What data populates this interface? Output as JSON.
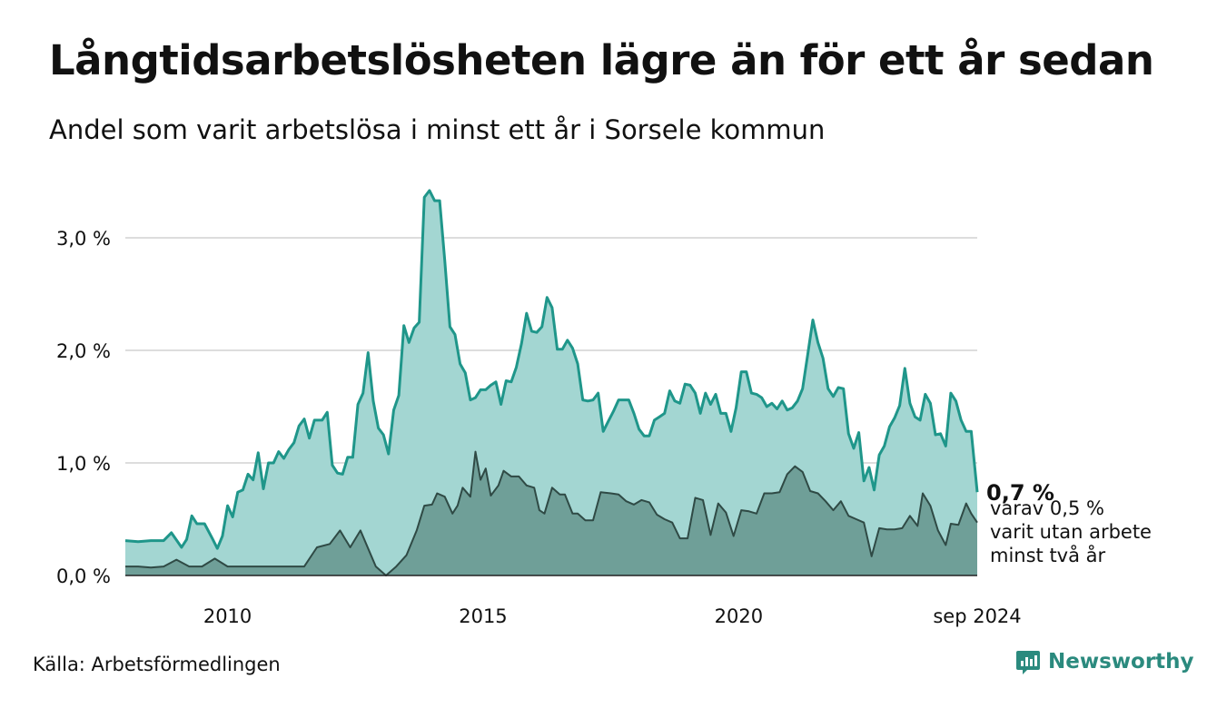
{
  "header": {
    "title": "Långtidsarbetslösheten lägre än för ett år sedan",
    "subtitle": "Andel som varit arbetslösa i minst ett år i Sorsele kommun"
  },
  "footer": {
    "source": "Källa: Arbetsförmedlingen",
    "brand": "Newsworthy"
  },
  "colors": {
    "area_main": "#a3d6d2",
    "line_main": "#1f968a",
    "area_sub": "#6f9f98",
    "line_sub": "#2f4a45",
    "grid": "#dddddd",
    "brand": "#2b8a7e"
  },
  "chart_data": {
    "type": "area",
    "title": "Långtidsarbetslösheten lägre än för ett år sedan",
    "subtitle": "Andel som varit arbetslösa i minst ett år i Sorsele kommun",
    "x_ticks": [
      {
        "x": 2010,
        "label": "2010"
      },
      {
        "x": 2015,
        "label": "2015"
      },
      {
        "x": 2020,
        "label": "2020"
      },
      {
        "x": 2024.667,
        "label": "sep 2024"
      }
    ],
    "y_ticks": [
      {
        "y": 0,
        "label": "0,0 %"
      },
      {
        "y": 1,
        "label": "1,0 %"
      },
      {
        "y": 2,
        "label": "2,0 %"
      },
      {
        "y": 3,
        "label": "3,0 %"
      }
    ],
    "xlim": [
      2008.0,
      2024.667
    ],
    "ylim": [
      0,
      3.5
    ],
    "grid": true,
    "series": [
      {
        "values": [
          [
            2008.0,
            0.31
          ],
          [
            2008.25,
            0.3
          ],
          [
            2008.5,
            0.31
          ],
          [
            2008.75,
            0.31
          ],
          [
            2008.9,
            0.38
          ],
          [
            2009.1,
            0.25
          ],
          [
            2009.2,
            0.32
          ],
          [
            2009.3,
            0.53
          ],
          [
            2009.4,
            0.46
          ],
          [
            2009.55,
            0.46
          ],
          [
            2009.7,
            0.33
          ],
          [
            2009.8,
            0.24
          ],
          [
            2009.9,
            0.35
          ],
          [
            2010.0,
            0.62
          ],
          [
            2010.1,
            0.52
          ],
          [
            2010.2,
            0.74
          ],
          [
            2010.3,
            0.76
          ],
          [
            2010.4,
            0.9
          ],
          [
            2010.5,
            0.85
          ],
          [
            2010.6,
            1.09
          ],
          [
            2010.7,
            0.77
          ],
          [
            2010.8,
            1.0
          ],
          [
            2010.9,
            1.0
          ],
          [
            2011.0,
            1.1
          ],
          [
            2011.1,
            1.04
          ],
          [
            2011.2,
            1.12
          ],
          [
            2011.3,
            1.18
          ],
          [
            2011.4,
            1.33
          ],
          [
            2011.5,
            1.39
          ],
          [
            2011.6,
            1.22
          ],
          [
            2011.7,
            1.38
          ],
          [
            2011.85,
            1.38
          ],
          [
            2011.95,
            1.45
          ],
          [
            2012.05,
            0.98
          ],
          [
            2012.15,
            0.91
          ],
          [
            2012.25,
            0.9
          ],
          [
            2012.35,
            1.05
          ],
          [
            2012.45,
            1.05
          ],
          [
            2012.55,
            1.52
          ],
          [
            2012.65,
            1.62
          ],
          [
            2012.75,
            1.98
          ],
          [
            2012.85,
            1.55
          ],
          [
            2012.95,
            1.31
          ],
          [
            2013.05,
            1.25
          ],
          [
            2013.15,
            1.08
          ],
          [
            2013.25,
            1.47
          ],
          [
            2013.35,
            1.6
          ],
          [
            2013.45,
            2.22
          ],
          [
            2013.55,
            2.07
          ],
          [
            2013.65,
            2.2
          ],
          [
            2013.75,
            2.25
          ],
          [
            2013.85,
            3.36
          ],
          [
            2013.95,
            3.42
          ],
          [
            2014.05,
            3.33
          ],
          [
            2014.15,
            3.33
          ],
          [
            2014.25,
            2.8
          ],
          [
            2014.35,
            2.21
          ],
          [
            2014.45,
            2.14
          ],
          [
            2014.55,
            1.88
          ],
          [
            2014.65,
            1.8
          ],
          [
            2014.75,
            1.56
          ],
          [
            2014.85,
            1.58
          ],
          [
            2014.95,
            1.65
          ],
          [
            2015.05,
            1.65
          ],
          [
            2015.15,
            1.69
          ],
          [
            2015.25,
            1.72
          ],
          [
            2015.35,
            1.52
          ],
          [
            2015.45,
            1.73
          ],
          [
            2015.55,
            1.72
          ],
          [
            2015.65,
            1.85
          ],
          [
            2015.75,
            2.06
          ],
          [
            2015.85,
            2.33
          ],
          [
            2015.95,
            2.17
          ],
          [
            2016.05,
            2.16
          ],
          [
            2016.15,
            2.21
          ],
          [
            2016.25,
            2.47
          ],
          [
            2016.35,
            2.38
          ],
          [
            2016.45,
            2.01
          ],
          [
            2016.55,
            2.01
          ],
          [
            2016.65,
            2.09
          ],
          [
            2016.75,
            2.02
          ],
          [
            2016.85,
            1.88
          ],
          [
            2016.95,
            1.56
          ],
          [
            2017.05,
            1.55
          ],
          [
            2017.15,
            1.56
          ],
          [
            2017.25,
            1.62
          ],
          [
            2017.35,
            1.28
          ],
          [
            2017.45,
            1.37
          ],
          [
            2017.55,
            1.46
          ],
          [
            2017.65,
            1.56
          ],
          [
            2017.75,
            1.56
          ],
          [
            2017.85,
            1.56
          ],
          [
            2017.95,
            1.44
          ],
          [
            2018.05,
            1.3
          ],
          [
            2018.15,
            1.24
          ],
          [
            2018.25,
            1.24
          ],
          [
            2018.35,
            1.38
          ],
          [
            2018.45,
            1.41
          ],
          [
            2018.55,
            1.44
          ],
          [
            2018.65,
            1.64
          ],
          [
            2018.75,
            1.55
          ],
          [
            2018.85,
            1.53
          ],
          [
            2018.95,
            1.7
          ],
          [
            2019.05,
            1.69
          ],
          [
            2019.15,
            1.62
          ],
          [
            2019.25,
            1.44
          ],
          [
            2019.35,
            1.62
          ],
          [
            2019.45,
            1.52
          ],
          [
            2019.55,
            1.61
          ],
          [
            2019.65,
            1.44
          ],
          [
            2019.75,
            1.44
          ],
          [
            2019.85,
            1.28
          ],
          [
            2019.95,
            1.49
          ],
          [
            2020.05,
            1.81
          ],
          [
            2020.15,
            1.81
          ],
          [
            2020.25,
            1.62
          ],
          [
            2020.35,
            1.61
          ],
          [
            2020.45,
            1.58
          ],
          [
            2020.55,
            1.5
          ],
          [
            2020.65,
            1.53
          ],
          [
            2020.75,
            1.48
          ],
          [
            2020.85,
            1.55
          ],
          [
            2020.95,
            1.47
          ],
          [
            2021.05,
            1.49
          ],
          [
            2021.15,
            1.55
          ],
          [
            2021.25,
            1.66
          ],
          [
            2021.35,
            1.96
          ],
          [
            2021.45,
            2.27
          ],
          [
            2021.55,
            2.07
          ],
          [
            2021.65,
            1.93
          ],
          [
            2021.75,
            1.66
          ],
          [
            2021.85,
            1.59
          ],
          [
            2021.95,
            1.67
          ],
          [
            2022.05,
            1.66
          ],
          [
            2022.15,
            1.26
          ],
          [
            2022.25,
            1.13
          ],
          [
            2022.35,
            1.27
          ],
          [
            2022.45,
            0.84
          ],
          [
            2022.55,
            0.96
          ],
          [
            2022.65,
            0.76
          ],
          [
            2022.75,
            1.07
          ],
          [
            2022.85,
            1.15
          ],
          [
            2022.95,
            1.32
          ],
          [
            2023.05,
            1.4
          ],
          [
            2023.15,
            1.51
          ],
          [
            2023.25,
            1.84
          ],
          [
            2023.35,
            1.53
          ],
          [
            2023.45,
            1.41
          ],
          [
            2023.55,
            1.38
          ],
          [
            2023.65,
            1.61
          ],
          [
            2023.75,
            1.53
          ],
          [
            2023.85,
            1.25
          ],
          [
            2023.95,
            1.26
          ],
          [
            2024.05,
            1.15
          ],
          [
            2024.15,
            1.62
          ],
          [
            2024.25,
            1.55
          ],
          [
            2024.35,
            1.38
          ],
          [
            2024.45,
            1.28
          ],
          [
            2024.55,
            1.28
          ],
          [
            2024.667,
            0.74
          ]
        ]
      },
      {
        "values": [
          [
            2008.0,
            0.08
          ],
          [
            2008.25,
            0.08
          ],
          [
            2008.5,
            0.07
          ],
          [
            2008.75,
            0.08
          ],
          [
            2009.0,
            0.14
          ],
          [
            2009.25,
            0.08
          ],
          [
            2009.5,
            0.08
          ],
          [
            2009.75,
            0.15
          ],
          [
            2010.0,
            0.08
          ],
          [
            2010.5,
            0.08
          ],
          [
            2011.0,
            0.08
          ],
          [
            2011.5,
            0.08
          ],
          [
            2011.75,
            0.25
          ],
          [
            2012.0,
            0.28
          ],
          [
            2012.2,
            0.4
          ],
          [
            2012.4,
            0.25
          ],
          [
            2012.6,
            0.4
          ],
          [
            2012.75,
            0.24
          ],
          [
            2012.9,
            0.08
          ],
          [
            2013.1,
            0.0
          ],
          [
            2013.3,
            0.08
          ],
          [
            2013.5,
            0.18
          ],
          [
            2013.7,
            0.4
          ],
          [
            2013.85,
            0.62
          ],
          [
            2014.0,
            0.63
          ],
          [
            2014.1,
            0.73
          ],
          [
            2014.25,
            0.7
          ],
          [
            2014.4,
            0.55
          ],
          [
            2014.5,
            0.62
          ],
          [
            2014.6,
            0.78
          ],
          [
            2014.75,
            0.7
          ],
          [
            2014.85,
            1.1
          ],
          [
            2014.95,
            0.85
          ],
          [
            2015.05,
            0.95
          ],
          [
            2015.15,
            0.71
          ],
          [
            2015.3,
            0.8
          ],
          [
            2015.4,
            0.93
          ],
          [
            2015.55,
            0.88
          ],
          [
            2015.7,
            0.88
          ],
          [
            2015.85,
            0.8
          ],
          [
            2016.0,
            0.78
          ],
          [
            2016.1,
            0.58
          ],
          [
            2016.2,
            0.55
          ],
          [
            2016.35,
            0.78
          ],
          [
            2016.5,
            0.72
          ],
          [
            2016.6,
            0.72
          ],
          [
            2016.75,
            0.55
          ],
          [
            2016.85,
            0.55
          ],
          [
            2017.0,
            0.49
          ],
          [
            2017.15,
            0.49
          ],
          [
            2017.3,
            0.74
          ],
          [
            2017.5,
            0.73
          ],
          [
            2017.65,
            0.72
          ],
          [
            2017.8,
            0.66
          ],
          [
            2017.95,
            0.63
          ],
          [
            2018.1,
            0.67
          ],
          [
            2018.25,
            0.65
          ],
          [
            2018.4,
            0.54
          ],
          [
            2018.55,
            0.5
          ],
          [
            2018.7,
            0.47
          ],
          [
            2018.85,
            0.33
          ],
          [
            2019.0,
            0.33
          ],
          [
            2019.15,
            0.69
          ],
          [
            2019.3,
            0.67
          ],
          [
            2019.45,
            0.36
          ],
          [
            2019.6,
            0.64
          ],
          [
            2019.75,
            0.56
          ],
          [
            2019.9,
            0.35
          ],
          [
            2020.05,
            0.58
          ],
          [
            2020.2,
            0.57
          ],
          [
            2020.35,
            0.55
          ],
          [
            2020.5,
            0.73
          ],
          [
            2020.65,
            0.73
          ],
          [
            2020.8,
            0.74
          ],
          [
            2020.95,
            0.9
          ],
          [
            2021.1,
            0.97
          ],
          [
            2021.25,
            0.92
          ],
          [
            2021.4,
            0.75
          ],
          [
            2021.55,
            0.73
          ],
          [
            2021.7,
            0.66
          ],
          [
            2021.85,
            0.58
          ],
          [
            2022.0,
            0.66
          ],
          [
            2022.15,
            0.53
          ],
          [
            2022.3,
            0.5
          ],
          [
            2022.45,
            0.47
          ],
          [
            2022.6,
            0.17
          ],
          [
            2022.75,
            0.42
          ],
          [
            2022.9,
            0.41
          ],
          [
            2023.05,
            0.41
          ],
          [
            2023.2,
            0.42
          ],
          [
            2023.35,
            0.53
          ],
          [
            2023.5,
            0.44
          ],
          [
            2023.6,
            0.73
          ],
          [
            2023.75,
            0.62
          ],
          [
            2023.9,
            0.4
          ],
          [
            2024.05,
            0.27
          ],
          [
            2024.15,
            0.46
          ],
          [
            2024.3,
            0.45
          ],
          [
            2024.45,
            0.64
          ],
          [
            2024.55,
            0.55
          ],
          [
            2024.667,
            0.47
          ]
        ]
      }
    ],
    "annotations": [
      {
        "text": "0,7 %",
        "emphasis": true
      },
      {
        "text": "varav 0,5 %"
      },
      {
        "text": "varit utan arbete"
      },
      {
        "text": "minst två år"
      }
    ]
  }
}
